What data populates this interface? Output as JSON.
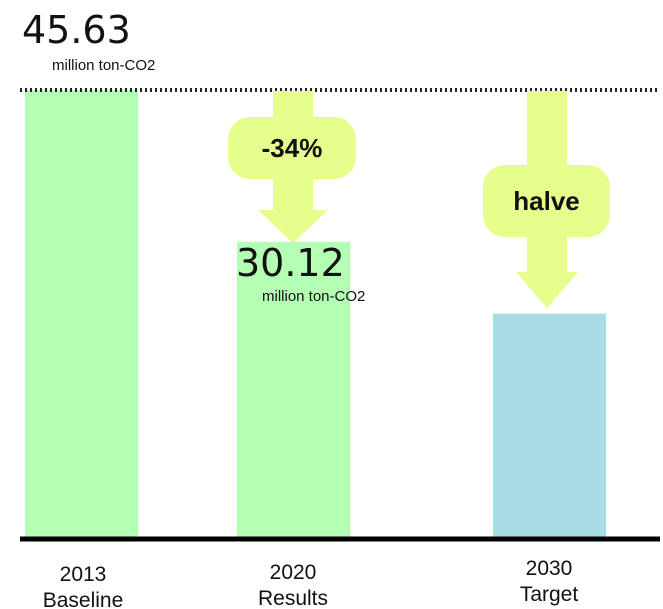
{
  "colors": {
    "baseline_bar": "#b3ffb3",
    "results_bar": "#b3ffb3",
    "target_bar": "#a8dce4",
    "arrow": "#e6fe8c",
    "axis": "#000000"
  },
  "chart_data": {
    "type": "bar",
    "categories": [
      "2013\nBaseline",
      "2020\nResults",
      "2030\nTarget"
    ],
    "values": [
      45.63,
      30.12,
      22.8
    ],
    "ylim": [
      0,
      45.63
    ],
    "reference_line": {
      "value": 45.63,
      "style": "dotted"
    },
    "data_labels": [
      {
        "value": "45.63",
        "unit": "million ton-CO2"
      },
      {
        "value": "30.12",
        "unit": "million ton-CO2"
      }
    ],
    "annotations": [
      {
        "text": "-34%"
      },
      {
        "text": "halve"
      }
    ],
    "grid": false
  }
}
